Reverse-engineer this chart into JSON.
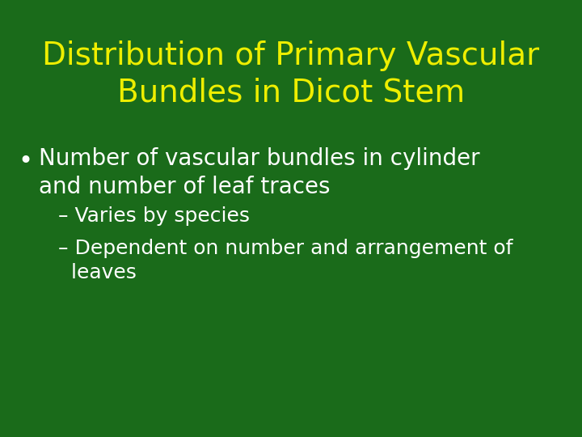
{
  "background_color": "#1a6b1a",
  "title_line1": "Distribution of Primary Vascular",
  "title_line2": "Bundles in Dicot Stem",
  "title_color": "#eeee00",
  "title_fontsize": 28,
  "bullet_text_line1": "Number of vascular bundles in cylinder",
  "bullet_text_line2": "and number of leaf traces",
  "bullet_color": "#ffffff",
  "bullet_fontsize": 20,
  "sub1_text": "– Varies by species",
  "sub2_line1": "– Dependent on number and arrangement of",
  "sub2_line2": "  leaves",
  "sub_color": "#ffffff",
  "sub_fontsize": 18
}
